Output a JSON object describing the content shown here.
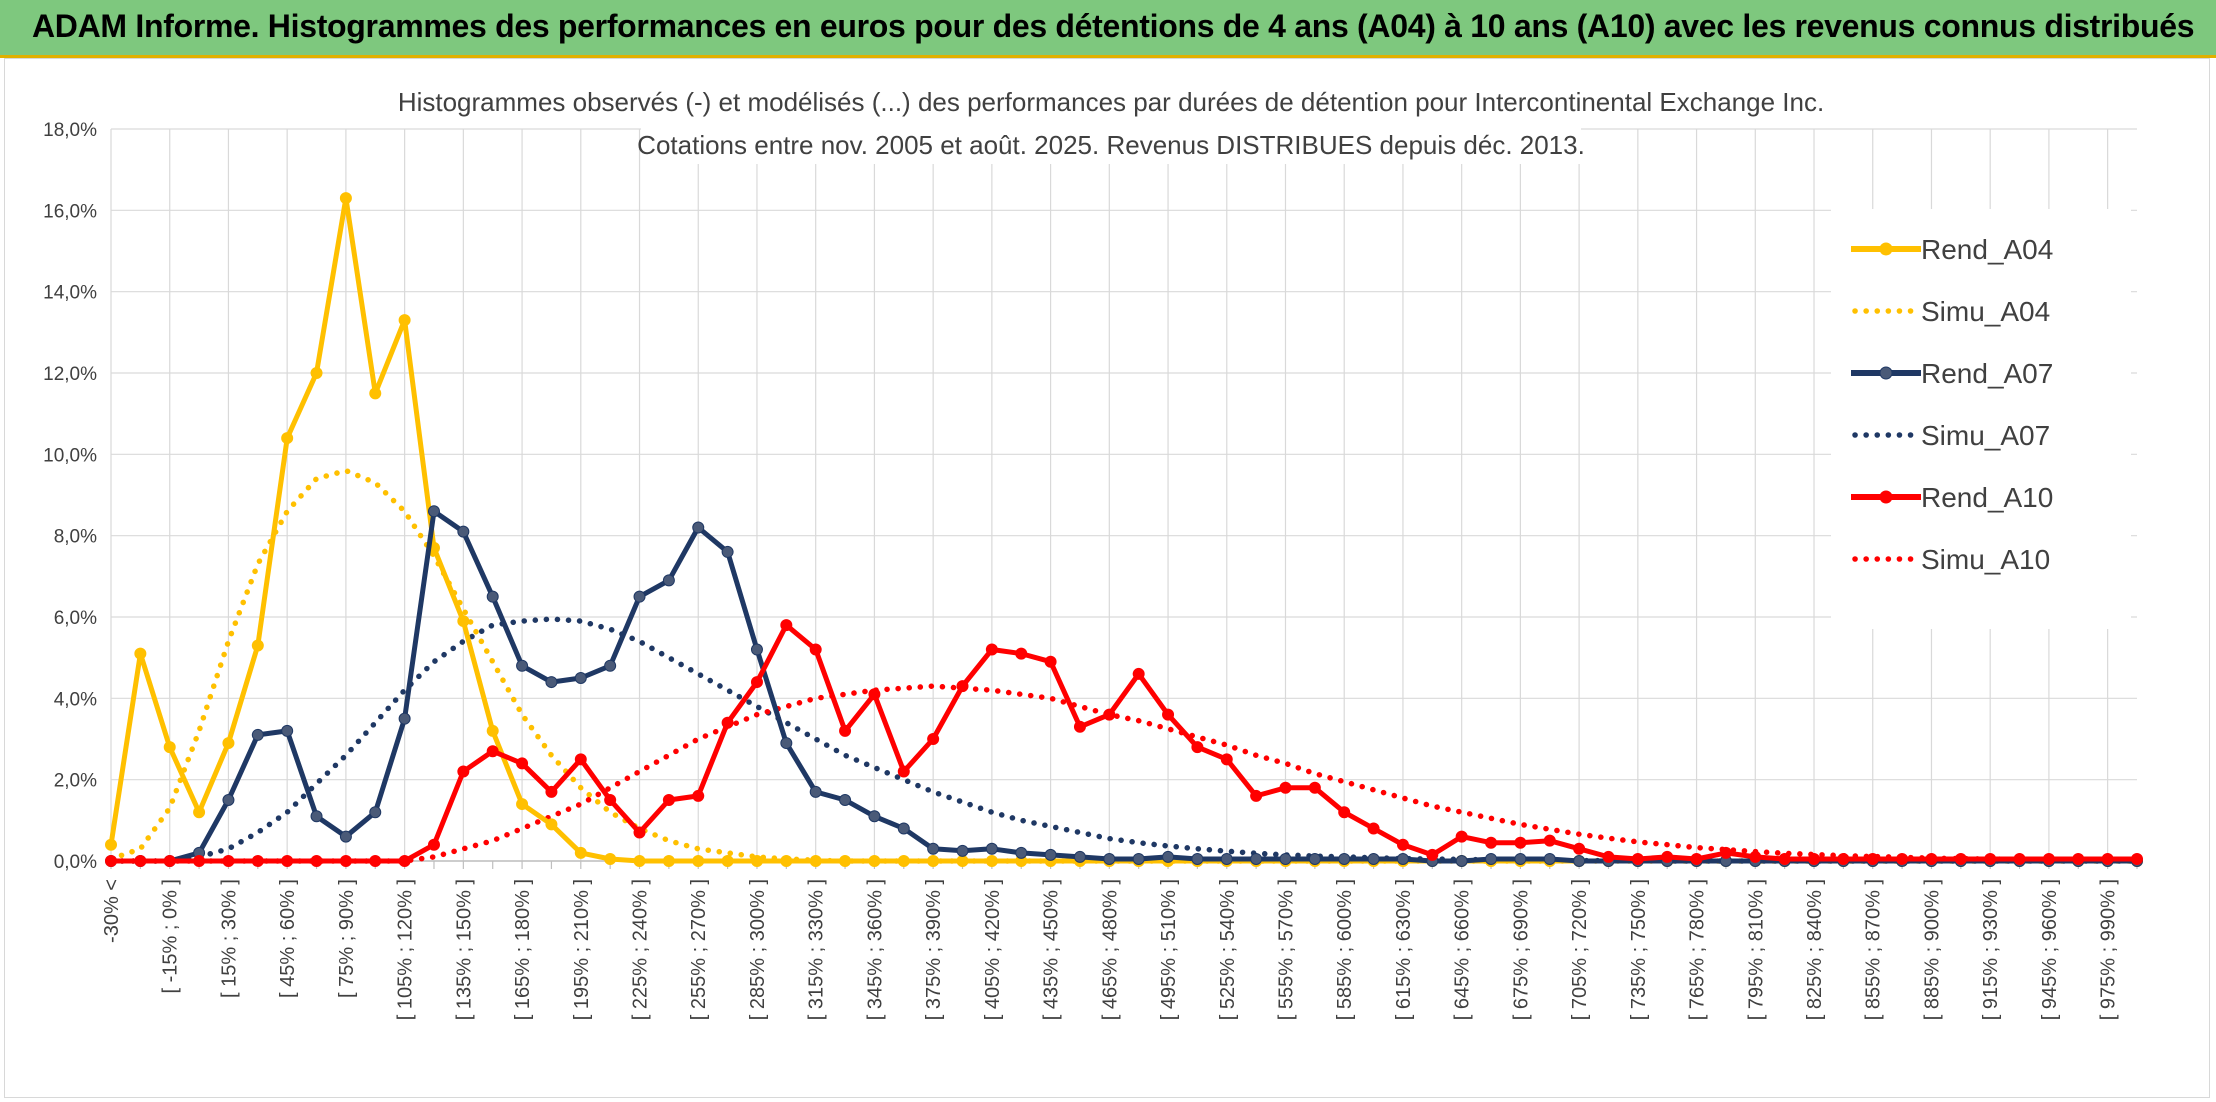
{
  "banner": {
    "title": "ADAM Informe. Histogrammes des performances en euros pour des détentions de 4 ans (A04) à 10 ans (A10) avec les revenus connus distribués"
  },
  "colors": {
    "banner_bg": "#7ec87e",
    "A04": "#FFC000",
    "A07": "#1F3864",
    "A10": "#FF0000",
    "grid": "#d9d9d9"
  },
  "chart_data": {
    "type": "line",
    "title": [
      "Histogrammes observés (-) et modélisés (...) des performances par durées de détention pour Intercontinental Exchange Inc.",
      "Cotations entre nov. 2005 et août. 2025. Revenus DISTRIBUES depuis déc. 2013."
    ],
    "xlabel": "",
    "ylabel": "",
    "ylim": [
      0,
      18
    ],
    "yticks": [
      "0,0%",
      "2,0%",
      "4,0%",
      "6,0%",
      "8,0%",
      "10,0%",
      "12,0%",
      "14,0%",
      "16,0%",
      "18,0%"
    ],
    "grid": true,
    "legend_position": "right",
    "x": [
      "-30% <",
      "[ -30% ; -15% ]",
      "[ -15% ; 0% ]",
      "[ 0% ; 15% ]",
      "[ 15% ; 30% ]",
      "[ 30% ; 45% ]",
      "[ 45% ; 60% ]",
      "[ 60% ; 75% ]",
      "[ 75% ; 90% ]",
      "[ 90% ; 105% ]",
      "[ 105% ; 120% ]",
      "[ 120% ; 135% ]",
      "[ 135% ; 150% ]",
      "[ 150% ; 165% ]",
      "[ 165% ; 180% ]",
      "[ 180% ; 195% ]",
      "[ 195% ; 210% ]",
      "[ 210% ; 225% ]",
      "[ 225% ; 240% ]",
      "[ 240% ; 255% ]",
      "[ 255% ; 270% ]",
      "[ 270% ; 285% ]",
      "[ 285% ; 300% ]",
      "[ 300% ; 315% ]",
      "[ 315% ; 330% ]",
      "[ 330% ; 345% ]",
      "[ 345% ; 360% ]",
      "[ 360% ; 375% ]",
      "[ 375% ; 390% ]",
      "[ 390% ; 405% ]",
      "[ 405% ; 420% ]",
      "[ 420% ; 435% ]",
      "[ 435% ; 450% ]",
      "[ 450% ; 465% ]",
      "[ 465% ; 480% ]",
      "[ 480% ; 495% ]",
      "[ 495% ; 510% ]",
      "[ 510% ; 525% ]",
      "[ 525% ; 540% ]",
      "[ 540% ; 555% ]",
      "[ 555% ; 570% ]",
      "[ 570% ; 585% ]",
      "[ 585% ; 600% ]",
      "[ 600% ; 615% ]",
      "[ 615% ; 630% ]",
      "[ 630% ; 645% ]",
      "[ 645% ; 660% ]",
      "[ 660% ; 675% ]",
      "[ 675% ; 690% ]",
      "[ 690% ; 705% ]",
      "[ 705% ; 720% ]",
      "[ 720% ; 735% ]",
      "[ 735% ; 750% ]",
      "[ 750% ; 765% ]",
      "[ 765% ; 780% ]",
      "[ 780% ; 795% ]",
      "[ 795% ; 810% ]",
      "[ 810% ; 825% ]",
      "[ 825% ; 840% ]",
      "[ 840% ; 855% ]",
      "[ 855% ; 870% ]",
      "[ 870% ; 885% ]",
      "[ 885% ; 900% ]",
      "[ 900% ; 915% ]",
      "[ 915% ; 930% ]",
      "[ 930% ; 945% ]",
      "[ 945% ; 960% ]",
      "[ 960% ; 975% ]",
      "[ 975% ; 990% ]",
      "[ 990% ; 1005% ]"
    ],
    "series": [
      {
        "name": "Rend_A04",
        "style": "solid",
        "color": "#FFC000",
        "values": [
          0.4,
          5.1,
          2.8,
          1.2,
          2.9,
          5.3,
          10.4,
          12.0,
          16.3,
          11.5,
          13.3,
          7.7,
          5.9,
          3.2,
          1.4,
          0.9,
          0.2,
          0.05,
          0,
          0,
          0,
          0,
          0,
          0,
          0,
          0,
          0,
          0,
          0,
          0,
          0,
          0,
          0,
          0,
          0,
          0,
          0,
          0,
          0,
          0,
          0,
          0,
          0,
          0,
          0,
          0,
          0,
          0,
          0,
          0,
          0,
          0,
          0,
          0,
          0,
          0,
          0,
          0,
          0,
          0,
          0,
          0,
          0,
          0,
          0,
          0,
          0,
          0,
          0,
          0
        ]
      },
      {
        "name": "Simu_A04",
        "style": "dotted",
        "color": "#FFC000",
        "values": [
          0.05,
          0.3,
          1.3,
          3.2,
          5.4,
          7.3,
          8.6,
          9.4,
          9.6,
          9.3,
          8.6,
          7.5,
          6.2,
          4.9,
          3.6,
          2.6,
          1.8,
          1.2,
          0.8,
          0.5,
          0.3,
          0.2,
          0.1,
          0.05,
          0.02,
          0,
          0,
          0,
          0,
          0,
          0,
          0,
          0,
          0,
          0,
          0,
          0,
          0,
          0,
          0,
          0,
          0,
          0,
          0,
          0,
          0,
          0,
          0,
          0,
          0,
          0,
          0,
          0,
          0,
          0,
          0,
          0,
          0,
          0,
          0,
          0,
          0,
          0,
          0,
          0,
          0,
          0,
          0,
          0,
          0
        ]
      },
      {
        "name": "Rend_A07",
        "style": "solid",
        "color": "#1F3864",
        "values": [
          0,
          0,
          0,
          0.2,
          1.5,
          3.1,
          3.2,
          1.1,
          0.6,
          1.2,
          3.5,
          8.6,
          8.1,
          6.5,
          4.8,
          4.4,
          4.5,
          4.8,
          6.5,
          6.9,
          8.2,
          7.6,
          5.2,
          2.9,
          1.7,
          1.5,
          1.1,
          0.8,
          0.3,
          0.25,
          0.3,
          0.2,
          0.15,
          0.1,
          0.05,
          0.05,
          0.1,
          0.05,
          0.05,
          0.05,
          0.05,
          0.05,
          0.05,
          0.05,
          0.05,
          0,
          0,
          0.05,
          0.05,
          0.05,
          0,
          0,
          0,
          0,
          0,
          0,
          0,
          0,
          0,
          0,
          0,
          0,
          0,
          0,
          0,
          0,
          0,
          0,
          0,
          0
        ]
      },
      {
        "name": "Simu_A07",
        "style": "dotted",
        "color": "#1F3864",
        "values": [
          0,
          0,
          0,
          0.1,
          0.3,
          0.7,
          1.2,
          1.9,
          2.6,
          3.4,
          4.2,
          4.9,
          5.4,
          5.8,
          5.9,
          5.95,
          5.9,
          5.7,
          5.4,
          5.0,
          4.6,
          4.2,
          3.8,
          3.4,
          3.0,
          2.6,
          2.3,
          2.0,
          1.7,
          1.45,
          1.2,
          1.0,
          0.85,
          0.7,
          0.55,
          0.45,
          0.37,
          0.3,
          0.24,
          0.19,
          0.15,
          0.12,
          0.1,
          0.08,
          0.06,
          0.05,
          0.04,
          0.03,
          0.02,
          0.02,
          0.01,
          0.01,
          0.01,
          0,
          0,
          0,
          0,
          0,
          0,
          0,
          0,
          0,
          0,
          0,
          0,
          0,
          0,
          0,
          0,
          0
        ]
      },
      {
        "name": "Rend_A10",
        "style": "solid",
        "color": "#FF0000",
        "values": [
          0,
          0,
          0,
          0,
          0,
          0,
          0,
          0,
          0,
          0,
          0,
          0.4,
          2.2,
          2.7,
          2.4,
          1.7,
          2.5,
          1.5,
          0.7,
          1.5,
          1.6,
          3.4,
          4.4,
          5.8,
          5.2,
          3.2,
          4.1,
          2.2,
          3.0,
          4.3,
          5.2,
          5.1,
          4.9,
          3.3,
          3.6,
          4.6,
          3.6,
          2.8,
          2.5,
          1.6,
          1.8,
          1.8,
          1.2,
          0.8,
          0.4,
          0.15,
          0.6,
          0.45,
          0.45,
          0.5,
          0.3,
          0.1,
          0.05,
          0.1,
          0.05,
          0.2,
          0.1,
          0.05,
          0.05,
          0.05,
          0.05,
          0.05,
          0.05,
          0.05,
          0.05,
          0.05,
          0.05,
          0.05,
          0.05,
          0.05
        ]
      },
      {
        "name": "Simu_A10",
        "style": "dotted",
        "color": "#FF0000",
        "values": [
          0,
          0,
          0,
          0,
          0,
          0,
          0,
          0,
          0,
          0,
          0,
          0.1,
          0.3,
          0.5,
          0.8,
          1.1,
          1.4,
          1.8,
          2.2,
          2.6,
          3.0,
          3.3,
          3.6,
          3.8,
          4.0,
          4.1,
          4.2,
          4.25,
          4.3,
          4.25,
          4.2,
          4.1,
          4.0,
          3.8,
          3.6,
          3.45,
          3.25,
          3.05,
          2.85,
          2.6,
          2.4,
          2.15,
          1.95,
          1.75,
          1.55,
          1.35,
          1.2,
          1.05,
          0.9,
          0.78,
          0.66,
          0.56,
          0.47,
          0.4,
          0.33,
          0.28,
          0.23,
          0.19,
          0.16,
          0.13,
          0.11,
          0.09,
          0.07,
          0.06,
          0.05,
          0.04,
          0.03,
          0.02,
          0.02,
          0.01
        ]
      }
    ]
  }
}
